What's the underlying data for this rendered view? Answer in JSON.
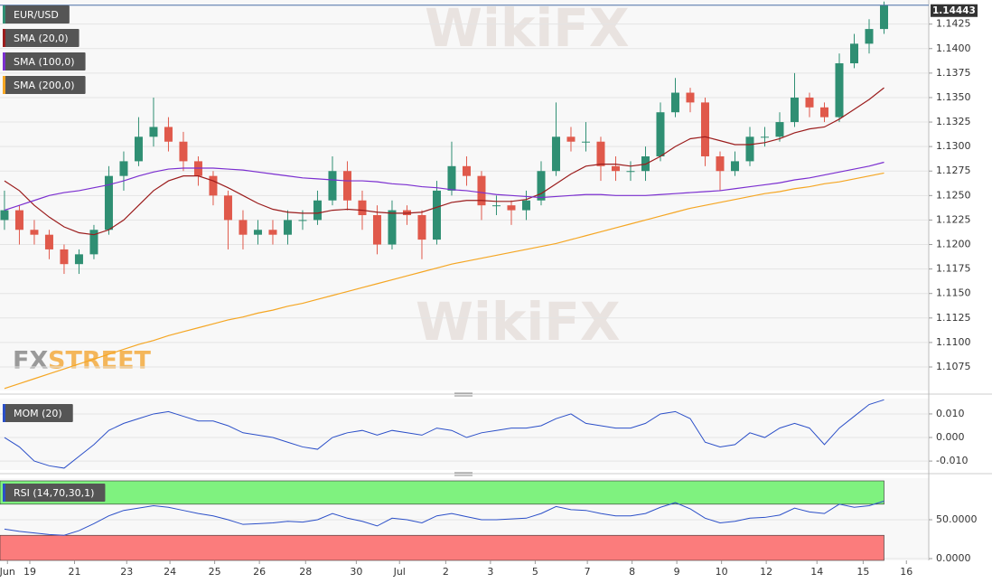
{
  "watermarks": {
    "brand": "WikiFX",
    "logo": [
      "FX",
      "STREET"
    ]
  },
  "chart_data": [
    {
      "type": "candlestick",
      "title": "EUR/USD",
      "up_color": "#2f8f73",
      "down_color": "#e0594b",
      "grid": true,
      "xlim": [
        -0.3,
        62
      ],
      "x": [
        0,
        1,
        2,
        3,
        4,
        5,
        6,
        7,
        8,
        9,
        10,
        11,
        12,
        13,
        14,
        15,
        16,
        17,
        18,
        19,
        20,
        21,
        22,
        23,
        24,
        25,
        26,
        27,
        28,
        29,
        30,
        31,
        32,
        33,
        34,
        35,
        36,
        37,
        38,
        39,
        40,
        41,
        42,
        43,
        44,
        45,
        46,
        47,
        48,
        49,
        50,
        51,
        52,
        53,
        54,
        55,
        56,
        57,
        58,
        59
      ],
      "open": [
        1.1225,
        1.1235,
        1.1215,
        1.121,
        1.1195,
        1.118,
        1.119,
        1.1215,
        1.127,
        1.1285,
        1.131,
        1.132,
        1.1305,
        1.1285,
        1.127,
        1.125,
        1.1225,
        1.121,
        1.1215,
        1.121,
        1.1225,
        1.1225,
        1.1245,
        1.1275,
        1.1245,
        1.123,
        1.12,
        1.1235,
        1.123,
        1.1205,
        1.1255,
        1.128,
        1.127,
        1.124,
        1.124,
        1.1235,
        1.1245,
        1.1275,
        1.131,
        1.1305,
        1.1305,
        1.128,
        1.1275,
        1.1275,
        1.129,
        1.1335,
        1.1355,
        1.1345,
        1.129,
        1.1275,
        1.1285,
        1.131,
        1.131,
        1.1325,
        1.135,
        1.134,
        1.133,
        1.1385,
        1.1405,
        1.142
      ],
      "high": [
        1.1255,
        1.124,
        1.1225,
        1.1215,
        1.12,
        1.1195,
        1.122,
        1.128,
        1.1295,
        1.133,
        1.135,
        1.133,
        1.1315,
        1.129,
        1.1275,
        1.1255,
        1.1235,
        1.1225,
        1.1225,
        1.1235,
        1.1235,
        1.1255,
        1.129,
        1.1285,
        1.1255,
        1.124,
        1.1245,
        1.124,
        1.1235,
        1.1265,
        1.1305,
        1.129,
        1.1275,
        1.125,
        1.1245,
        1.1255,
        1.1285,
        1.1345,
        1.132,
        1.1325,
        1.131,
        1.129,
        1.1285,
        1.13,
        1.1345,
        1.137,
        1.136,
        1.135,
        1.1295,
        1.1295,
        1.132,
        1.132,
        1.1335,
        1.1375,
        1.1355,
        1.1345,
        1.1395,
        1.1415,
        1.143,
        1.1448
      ],
      "low": [
        1.1215,
        1.12,
        1.12,
        1.1185,
        1.117,
        1.117,
        1.1185,
        1.121,
        1.1255,
        1.128,
        1.13,
        1.1295,
        1.1275,
        1.126,
        1.124,
        1.1195,
        1.1195,
        1.12,
        1.12,
        1.12,
        1.1215,
        1.122,
        1.124,
        1.1235,
        1.1215,
        1.119,
        1.1195,
        1.122,
        1.1185,
        1.12,
        1.125,
        1.126,
        1.1225,
        1.123,
        1.122,
        1.1225,
        1.124,
        1.127,
        1.1295,
        1.1295,
        1.1265,
        1.1265,
        1.1265,
        1.1265,
        1.1285,
        1.133,
        1.1335,
        1.128,
        1.1255,
        1.127,
        1.128,
        1.13,
        1.1305,
        1.132,
        1.133,
        1.1325,
        1.1325,
        1.138,
        1.1395,
        1.1415
      ],
      "close": [
        1.1235,
        1.1215,
        1.121,
        1.1195,
        1.118,
        1.119,
        1.1215,
        1.127,
        1.1285,
        1.131,
        1.132,
        1.1305,
        1.1285,
        1.127,
        1.125,
        1.1225,
        1.121,
        1.1215,
        1.121,
        1.1225,
        1.1225,
        1.1245,
        1.1275,
        1.1245,
        1.123,
        1.12,
        1.1235,
        1.123,
        1.1205,
        1.1255,
        1.128,
        1.127,
        1.124,
        1.124,
        1.1235,
        1.1245,
        1.1275,
        1.131,
        1.1305,
        1.1305,
        1.128,
        1.1275,
        1.1275,
        1.129,
        1.1335,
        1.1355,
        1.1345,
        1.129,
        1.1275,
        1.1285,
        1.131,
        1.131,
        1.1325,
        1.135,
        1.134,
        1.133,
        1.1385,
        1.1405,
        1.142,
        1.14443
      ],
      "series": [
        {
          "name": "SMA (20,0)",
          "color": "#9b1c1c",
          "values": [
            1.1265,
            1.1255,
            1.124,
            1.1228,
            1.1218,
            1.1212,
            1.121,
            1.1215,
            1.1225,
            1.124,
            1.1255,
            1.1265,
            1.127,
            1.127,
            1.1265,
            1.1258,
            1.125,
            1.1242,
            1.1236,
            1.1233,
            1.1232,
            1.1232,
            1.1235,
            1.1236,
            1.1235,
            1.1233,
            1.1232,
            1.1232,
            1.1233,
            1.1238,
            1.1243,
            1.1245,
            1.1245,
            1.1244,
            1.1244,
            1.1246,
            1.1252,
            1.1262,
            1.1272,
            1.128,
            1.1282,
            1.1282,
            1.128,
            1.1282,
            1.129,
            1.13,
            1.1308,
            1.131,
            1.1306,
            1.1302,
            1.1302,
            1.1304,
            1.1308,
            1.1314,
            1.1318,
            1.132,
            1.1328,
            1.1338,
            1.1348,
            1.136
          ]
        },
        {
          "name": "SMA (100,0)",
          "color": "#7b2fd0",
          "values": [
            1.1235,
            1.124,
            1.1245,
            1.125,
            1.1253,
            1.1255,
            1.1258,
            1.1261,
            1.1265,
            1.127,
            1.1274,
            1.1277,
            1.1278,
            1.1278,
            1.1278,
            1.1277,
            1.1276,
            1.1274,
            1.1272,
            1.127,
            1.1268,
            1.1267,
            1.1266,
            1.1265,
            1.1265,
            1.1264,
            1.1262,
            1.1261,
            1.1259,
            1.1258,
            1.1256,
            1.1255,
            1.1253,
            1.1251,
            1.125,
            1.1249,
            1.1248,
            1.1249,
            1.125,
            1.1251,
            1.1251,
            1.125,
            1.125,
            1.125,
            1.1251,
            1.1252,
            1.1253,
            1.1254,
            1.1255,
            1.1257,
            1.1259,
            1.1261,
            1.1263,
            1.1266,
            1.1268,
            1.1271,
            1.1274,
            1.1277,
            1.128,
            1.1284
          ]
        },
        {
          "name": "SMA (200,0)",
          "color": "#f5a623",
          "values": [
            1.1053,
            1.1058,
            1.1063,
            1.1068,
            1.1073,
            1.1078,
            1.1083,
            1.1088,
            1.1093,
            1.1098,
            1.1102,
            1.1107,
            1.1111,
            1.1115,
            1.1119,
            1.1123,
            1.1126,
            1.113,
            1.1133,
            1.1137,
            1.114,
            1.1144,
            1.1148,
            1.1152,
            1.1156,
            1.116,
            1.1164,
            1.1168,
            1.1172,
            1.1176,
            1.118,
            1.1183,
            1.1186,
            1.1189,
            1.1192,
            1.1195,
            1.1198,
            1.1201,
            1.1205,
            1.1209,
            1.1213,
            1.1217,
            1.1221,
            1.1225,
            1.1229,
            1.1233,
            1.1237,
            1.124,
            1.1243,
            1.1246,
            1.1249,
            1.1252,
            1.1254,
            1.1257,
            1.1259,
            1.1262,
            1.1264,
            1.1267,
            1.127,
            1.1273
          ]
        }
      ],
      "ylim": [
        1.1051,
        1.1445
      ],
      "yticks": [
        {
          "value": 1.1075,
          "label": "1.1075"
        },
        {
          "value": 1.11,
          "label": "1.1100"
        },
        {
          "value": 1.1125,
          "label": "1.1125"
        },
        {
          "value": 1.115,
          "label": "1.1150"
        },
        {
          "value": 1.1175,
          "label": "1.1175"
        },
        {
          "value": 1.12,
          "label": "1.1200"
        },
        {
          "value": 1.1225,
          "label": "1.1225"
        },
        {
          "value": 1.125,
          "label": "1.1250"
        },
        {
          "value": 1.1275,
          "label": "1.1275"
        },
        {
          "value": 1.13,
          "label": "1.1300"
        },
        {
          "value": 1.1325,
          "label": "1.1325"
        },
        {
          "value": 1.135,
          "label": "1.1350"
        },
        {
          "value": 1.1375,
          "label": "1.1375"
        },
        {
          "value": 1.14,
          "label": "1.1400"
        },
        {
          "value": 1.1425,
          "label": "1.1425"
        }
      ]
    },
    {
      "type": "line",
      "grid": true,
      "series": [
        {
          "name": "MOM (20)",
          "color": "#2b4fc8",
          "values": [
            0.0,
            -0.004,
            -0.01,
            -0.012,
            -0.013,
            -0.008,
            -0.003,
            0.003,
            0.006,
            0.008,
            0.01,
            0.011,
            0.009,
            0.007,
            0.007,
            0.005,
            0.002,
            0.001,
            0.0,
            -0.002,
            -0.004,
            -0.005,
            0.0,
            0.002,
            0.003,
            0.001,
            0.003,
            0.002,
            0.001,
            0.004,
            0.003,
            0.0,
            0.002,
            0.003,
            0.004,
            0.004,
            0.005,
            0.008,
            0.01,
            0.006,
            0.005,
            0.004,
            0.004,
            0.006,
            0.01,
            0.011,
            0.008,
            -0.002,
            -0.004,
            -0.003,
            0.002,
            0.0,
            0.004,
            0.006,
            0.004,
            -0.003,
            0.004,
            0.009,
            0.014,
            0.016
          ]
        }
      ],
      "ylim": [
        -0.0138,
        0.0165
      ],
      "yticks": [
        {
          "value": -0.01,
          "label": "-0.010"
        },
        {
          "value": 0,
          "label": "0.000"
        },
        {
          "value": 0.01,
          "label": "0.010"
        }
      ]
    },
    {
      "type": "line",
      "grid": true,
      "series": [
        {
          "name": "RSI (14,70,30,1)",
          "color": "#2b4fc8",
          "values": [
            38,
            35,
            33,
            31,
            30,
            36,
            45,
            55,
            62,
            65,
            68,
            66,
            62,
            58,
            55,
            50,
            44,
            45,
            46,
            48,
            47,
            50,
            58,
            52,
            48,
            42,
            52,
            50,
            46,
            55,
            58,
            54,
            50,
            50,
            51,
            52,
            58,
            67,
            63,
            62,
            58,
            55,
            55,
            58,
            66,
            72,
            64,
            52,
            46,
            48,
            52,
            53,
            56,
            65,
            60,
            58,
            70,
            66,
            68,
            74
          ]
        }
      ],
      "overbought": 70,
      "oversold": 30,
      "overbought_color": "#7ff27f",
      "oversold_color": "#fb7c7c",
      "ylim": [
        -2.3,
        103.5
      ],
      "yticks": [
        {
          "value": 0,
          "label": "0.0000"
        },
        {
          "value": 50,
          "label": "50.0000"
        }
      ],
      "xticks": [
        {
          "value": 0.2,
          "label": "Jun"
        },
        {
          "value": 1.7,
          "label": "19"
        },
        {
          "value": 4.7,
          "label": "21"
        },
        {
          "value": 8.2,
          "label": "23"
        },
        {
          "value": 11.1,
          "label": "24"
        },
        {
          "value": 14.1,
          "label": "25"
        },
        {
          "value": 17.1,
          "label": "26"
        },
        {
          "value": 20.2,
          "label": "28"
        },
        {
          "value": 23.6,
          "label": "30"
        },
        {
          "value": 26.5,
          "label": "Jul"
        },
        {
          "value": 29.6,
          "label": "2"
        },
        {
          "value": 32.6,
          "label": "3"
        },
        {
          "value": 35.6,
          "label": "5"
        },
        {
          "value": 39.1,
          "label": "7"
        },
        {
          "value": 42.1,
          "label": "8"
        },
        {
          "value": 45.1,
          "label": "9"
        },
        {
          "value": 48.1,
          "label": "10"
        },
        {
          "value": 51.1,
          "label": "12"
        },
        {
          "value": 54.5,
          "label": "14"
        },
        {
          "value": 57.6,
          "label": "15"
        },
        {
          "value": 60.5,
          "label": "16"
        }
      ]
    }
  ]
}
